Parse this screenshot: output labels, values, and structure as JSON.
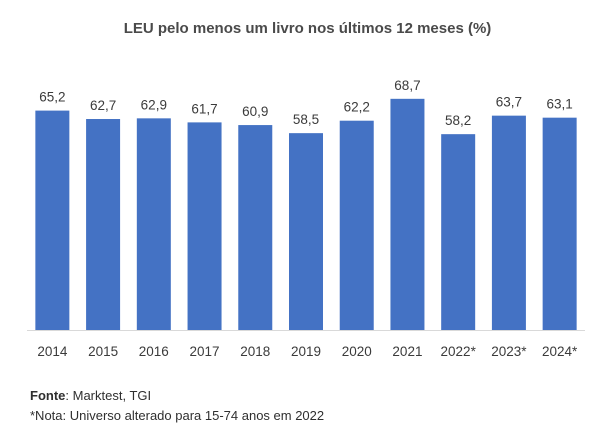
{
  "chart_data": {
    "type": "bar",
    "title": "LEU pelo menos um livro nos últimos 12 meses (%)",
    "categories": [
      "2014",
      "2015",
      "2016",
      "2017",
      "2018",
      "2019",
      "2020",
      "2021",
      "2022*",
      "2023*",
      "2024*"
    ],
    "values": [
      65.2,
      62.7,
      62.9,
      61.7,
      60.9,
      58.5,
      62.2,
      68.7,
      58.2,
      63.7,
      63.1
    ],
    "value_labels": [
      "65,2",
      "62,7",
      "62,9",
      "61,7",
      "60,9",
      "58,5",
      "62,2",
      "68,7",
      "58,2",
      "63,7",
      "63,1"
    ],
    "xlabel": "",
    "ylabel": "",
    "ylim": [
      0,
      70
    ],
    "grid": false,
    "bar_color": "#4472c4",
    "axis_line_color": "#d9d9d9"
  },
  "footer": {
    "source_label": "Fonte",
    "source_text": ": Marktest, TGI",
    "note_text": "*Nota: Universo alterado para 15-74 anos em 2022"
  }
}
